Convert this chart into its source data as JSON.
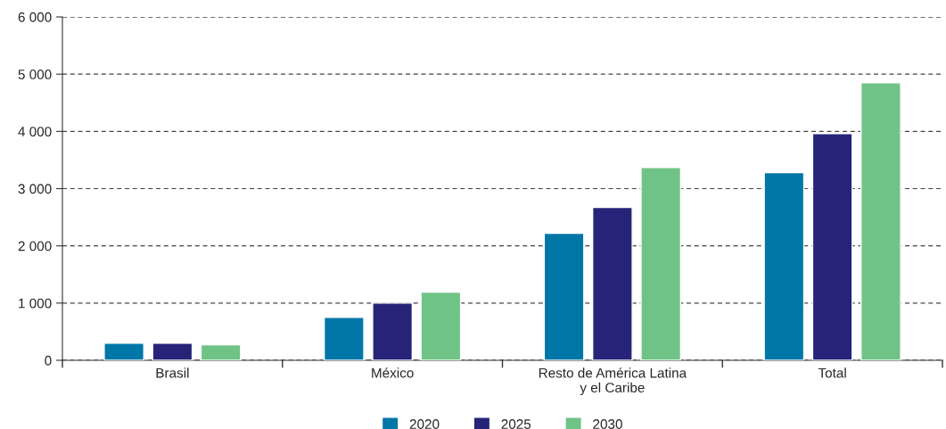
{
  "chart_data": {
    "type": "bar",
    "categories": [
      "Brasil",
      "México",
      "Resto de América Latina\ny el Caribe",
      "Total"
    ],
    "series": [
      {
        "name": "2020",
        "color": "#0077a6",
        "values": [
          300,
          750,
          2220,
          3280
        ]
      },
      {
        "name": "2025",
        "color": "#262478",
        "values": [
          300,
          1000,
          2670,
          3960
        ]
      },
      {
        "name": "2030",
        "color": "#6fc386",
        "values": [
          270,
          1190,
          3370,
          4850
        ]
      }
    ],
    "ylim": [
      0,
      6000
    ],
    "yticks": [
      0,
      {
        "value": 1000,
        "label": "1 000"
      },
      {
        "value": 2000,
        "label": "2 000"
      },
      {
        "value": 3000,
        "label": "3 000"
      },
      {
        "value": 4000,
        "label": "4 000"
      },
      {
        "value": 5000,
        "label": "5 000"
      },
      {
        "value": 6000,
        "label": "6 000"
      }
    ],
    "grid": "y",
    "legend": "bottom"
  }
}
